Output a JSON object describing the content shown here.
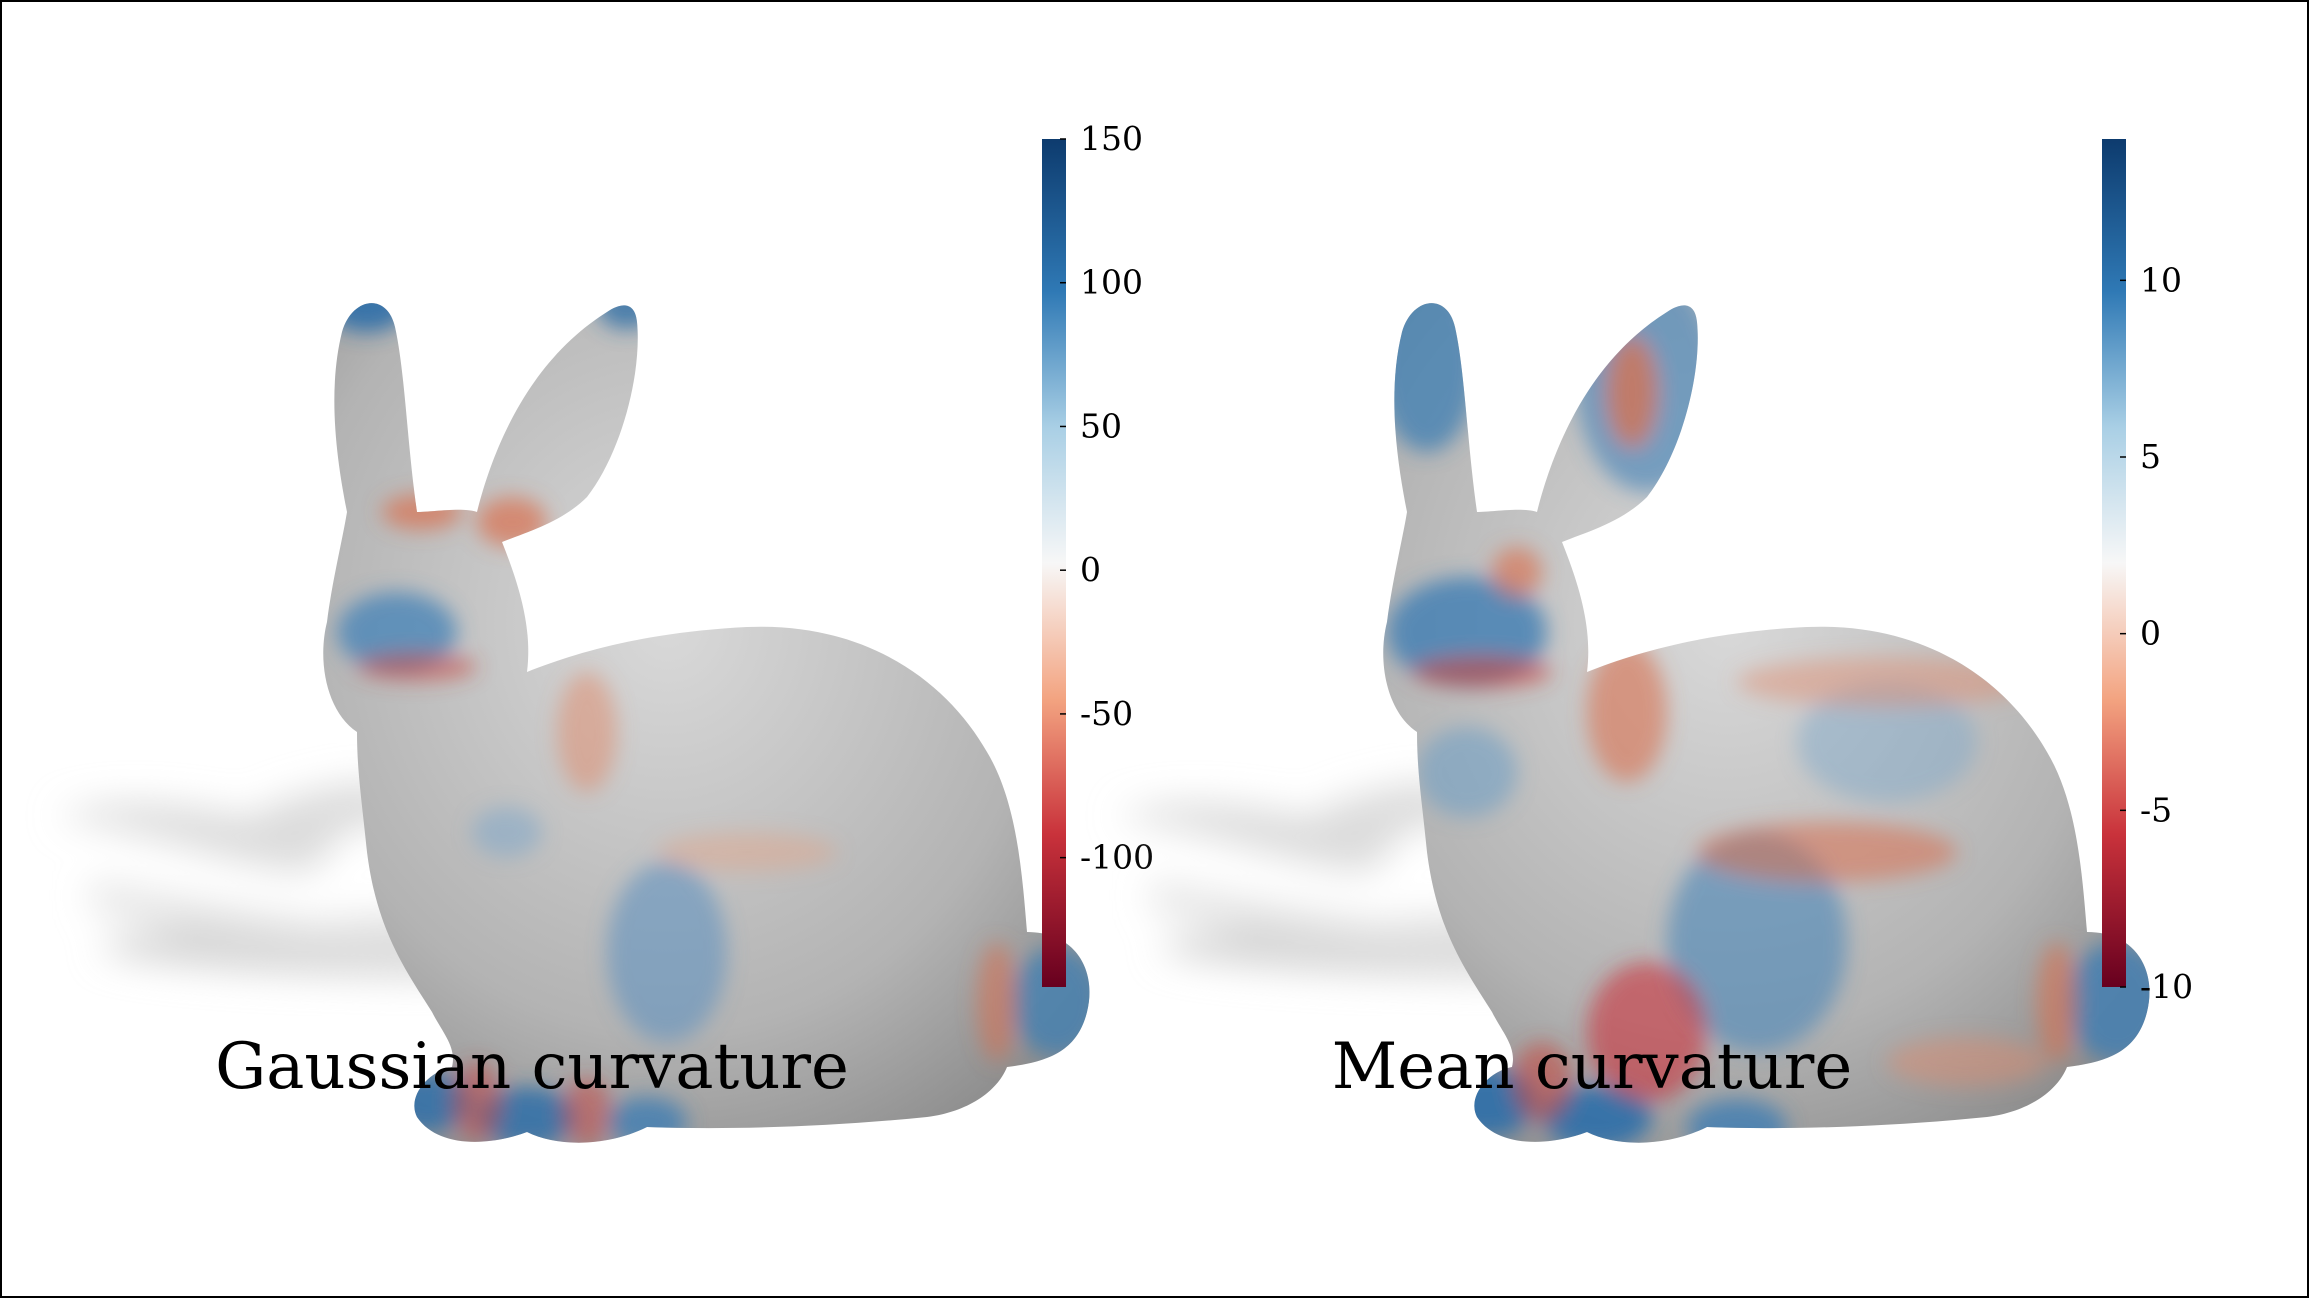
{
  "panels": [
    {
      "caption": "Gaussian curvature",
      "colorbar": {
        "ticks": [
          "150",
          "100",
          "50",
          "0",
          "-50",
          "-100"
        ],
        "tick_values": [
          150,
          100,
          50,
          0,
          -50,
          -100
        ],
        "range": [
          -145,
          150
        ]
      }
    },
    {
      "caption": "Mean curvature",
      "colorbar": {
        "ticks": [
          "10",
          "5",
          "0",
          "-5",
          "-10"
        ],
        "tick_values": [
          10,
          5,
          0,
          -5,
          -10
        ],
        "range": [
          -10,
          14
        ]
      }
    }
  ],
  "colors": {
    "positive": "#0d3b6e",
    "mid": "#f7f7f7",
    "negative": "#67001f",
    "surface": "#b8b8b8"
  }
}
